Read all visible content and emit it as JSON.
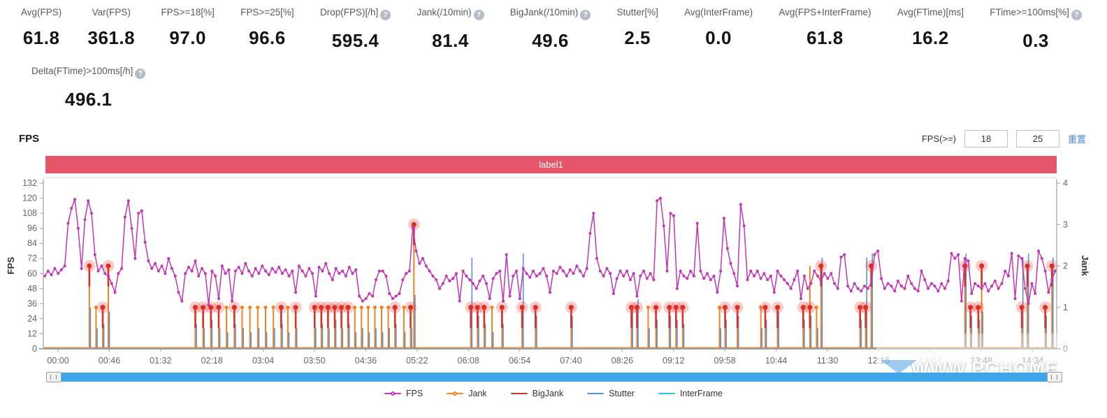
{
  "metrics": {
    "items": [
      {
        "label": "Avg(FPS)",
        "value": "61.8",
        "help": false
      },
      {
        "label": "Var(FPS)",
        "value": "361.8",
        "help": false
      },
      {
        "label": "FPS>=18[%]",
        "value": "97.0",
        "help": false
      },
      {
        "label": "FPS>=25[%]",
        "value": "96.6",
        "help": false
      },
      {
        "label": "Drop(FPS)[/h]",
        "value": "595.4",
        "help": true
      },
      {
        "label": "Jank(/10min)",
        "value": "81.4",
        "help": true
      },
      {
        "label": "BigJank(/10min)",
        "value": "49.6",
        "help": true
      },
      {
        "label": "Stutter[%]",
        "value": "2.5",
        "help": false
      },
      {
        "label": "Avg(InterFrame)",
        "value": "0.0",
        "help": false
      },
      {
        "label": "Avg(FPS+InterFrame)",
        "value": "61.8",
        "help": false
      },
      {
        "label": "Avg(FTime)[ms]",
        "value": "16.2",
        "help": false
      },
      {
        "label": "FTime>=100ms[%]",
        "value": "0.3",
        "help": true
      }
    ]
  },
  "metrics_row2": {
    "label": "Delta(FTime)>100ms[/h]",
    "value": "496.1",
    "help": true
  },
  "fps_section": {
    "title": "FPS",
    "filter_label": "FPS(>=)",
    "filter_min": "18",
    "filter_max": "25",
    "reset_label": "重置"
  },
  "watermark": {
    "text": "WWW.PCHOME"
  },
  "chart_data": {
    "type": "line",
    "label_banner": "label1",
    "y_left": {
      "label": "FPS",
      "min": 0,
      "max": 132,
      "ticks": [
        0,
        12,
        24,
        36,
        48,
        60,
        72,
        84,
        96,
        108,
        120,
        132
      ]
    },
    "y_right": {
      "label": "Jank",
      "min": 0,
      "max": 4,
      "ticks": [
        0,
        1,
        2,
        3,
        4
      ]
    },
    "x_axis": {
      "tick_interval_s": 46,
      "labels": [
        "00:00",
        "00:46",
        "01:32",
        "02:18",
        "03:04",
        "03:50",
        "04:36",
        "05:22",
        "06:08",
        "06:54",
        "07:40",
        "08:26",
        "09:12",
        "09:58",
        "10:44",
        "11:30",
        "12:16",
        "13:02",
        "13:48",
        "14:34"
      ],
      "faded_label_index": 17
    },
    "colors": {
      "fps": "#c136b4",
      "jank": "#f08423",
      "bigjank": "#d93025",
      "bigjank_halo": "rgba(240,70,60,0.28)",
      "stutter": "#5b8fd6",
      "interframe": "#29c4d8",
      "axis": "#a7afb8",
      "axis_bottom": "#9aa0a6",
      "tick_text": "#666666",
      "banner": "#e6566b",
      "scrollbar": "#3ea5e9"
    },
    "fps_series": {
      "t0": 0,
      "dt_s": 3,
      "values": [
        58,
        62,
        59,
        64,
        60,
        63,
        66,
        100,
        112,
        119,
        96,
        64,
        103,
        118,
        108,
        75,
        62,
        66,
        60,
        58,
        52,
        45,
        60,
        64,
        105,
        118,
        96,
        72,
        108,
        110,
        85,
        70,
        64,
        68,
        62,
        66,
        60,
        72,
        64,
        58,
        45,
        38,
        60,
        65,
        62,
        70,
        58,
        64,
        60,
        35,
        62,
        58,
        40,
        66,
        60,
        63,
        38,
        62,
        65,
        60,
        68,
        62,
        58,
        64,
        60,
        66,
        62,
        59,
        64,
        61,
        65,
        60,
        63,
        58,
        62,
        45,
        66,
        62,
        58,
        64,
        60,
        42,
        65,
        62,
        68,
        60,
        55,
        64,
        60,
        62,
        58,
        65,
        60,
        63,
        42,
        38,
        40,
        44,
        42,
        55,
        62,
        62,
        58,
        44,
        40,
        42,
        44,
        55,
        60,
        62,
        97,
        78,
        68,
        72,
        66,
        62,
        58,
        55,
        48,
        52,
        58,
        54,
        56,
        60,
        38,
        62,
        58,
        55,
        52,
        48,
        54,
        58,
        52,
        40,
        56,
        60,
        62,
        38,
        75,
        42,
        58,
        62,
        40,
        64,
        60,
        57,
        62,
        58,
        60,
        64,
        58,
        45,
        62,
        60,
        65,
        62,
        58,
        63,
        60,
        66,
        62,
        58,
        64,
        92,
        108,
        72,
        62,
        58,
        64,
        60,
        44,
        56,
        62,
        58,
        62,
        55,
        60,
        42,
        58,
        62,
        56,
        60,
        55,
        118,
        120,
        98,
        62,
        108,
        106,
        48,
        62,
        58,
        56,
        62,
        58,
        100,
        62,
        56,
        60,
        55,
        58,
        45,
        62,
        104,
        80,
        68,
        60,
        50,
        115,
        98,
        55,
        62,
        58,
        62,
        56,
        60,
        55,
        58,
        45,
        62,
        58,
        55,
        52,
        48,
        55,
        62,
        40,
        58,
        48,
        52,
        62,
        58,
        54,
        60,
        56,
        60,
        52,
        48,
        73,
        75,
        50,
        46,
        52,
        48,
        46,
        50,
        48,
        52,
        75,
        78,
        56,
        48,
        52,
        50,
        46,
        54,
        50,
        48,
        58,
        52,
        48,
        46,
        62,
        55,
        48,
        52,
        50,
        46,
        52,
        48,
        54,
        76,
        72,
        75,
        38,
        72,
        70,
        44,
        52,
        50,
        48,
        52,
        46,
        50,
        54,
        48,
        52,
        62,
        58,
        76,
        40,
        74,
        72,
        48,
        36,
        52,
        44,
        78,
        72,
        62,
        45,
        55,
        62
      ]
    },
    "events": [
      {
        "t": 40,
        "jank": 2,
        "big": 2,
        "stutter": 1.0
      },
      {
        "t": 46,
        "jank": 1,
        "big": 0,
        "stutter": 0.5
      },
      {
        "t": 52,
        "jank": 1,
        "big": 1,
        "stutter": 0.6
      },
      {
        "t": 57,
        "jank": 2,
        "big": 2,
        "stutter": 0.9
      },
      {
        "t": 135,
        "jank": 1,
        "big": 1,
        "stutter": 0.6
      },
      {
        "t": 142,
        "jank": 1,
        "big": 1,
        "stutter": 0.5
      },
      {
        "t": 149,
        "jank": 1,
        "big": 1,
        "stutter": 0.7
      },
      {
        "t": 156,
        "jank": 1,
        "big": 1,
        "stutter": 0.5
      },
      {
        "t": 163,
        "jank": 1,
        "big": 0,
        "stutter": 0.4
      },
      {
        "t": 170,
        "jank": 1,
        "big": 1,
        "stutter": 0.6
      },
      {
        "t": 177,
        "jank": 1,
        "big": 0,
        "stutter": 0.5
      },
      {
        "t": 184,
        "jank": 1,
        "big": 0,
        "stutter": 0.4
      },
      {
        "t": 191,
        "jank": 1,
        "big": 0,
        "stutter": 0.5
      },
      {
        "t": 198,
        "jank": 1,
        "big": 0,
        "stutter": 0.4
      },
      {
        "t": 205,
        "jank": 1,
        "big": 0,
        "stutter": 0.5
      },
      {
        "t": 212,
        "jank": 1,
        "big": 1,
        "stutter": 0.6
      },
      {
        "t": 218,
        "jank": 1,
        "big": 0,
        "stutter": 0.4
      },
      {
        "t": 225,
        "jank": 1,
        "big": 1,
        "stutter": 0.5
      },
      {
        "t": 242,
        "jank": 1,
        "big": 1,
        "stutter": 0.5
      },
      {
        "t": 248,
        "jank": 1,
        "big": 1,
        "stutter": 0.6
      },
      {
        "t": 254,
        "jank": 1,
        "big": 1,
        "stutter": 0.5
      },
      {
        "t": 260,
        "jank": 1,
        "big": 1,
        "stutter": 0.7
      },
      {
        "t": 266,
        "jank": 1,
        "big": 1,
        "stutter": 0.5
      },
      {
        "t": 272,
        "jank": 1,
        "big": 1,
        "stutter": 0.6
      },
      {
        "t": 278,
        "jank": 1,
        "big": 0,
        "stutter": 0.4
      },
      {
        "t": 284,
        "jank": 1,
        "big": 0,
        "stutter": 0.5
      },
      {
        "t": 290,
        "jank": 1,
        "big": 0,
        "stutter": 0.4
      },
      {
        "t": 296,
        "jank": 1,
        "big": 0,
        "stutter": 0.5
      },
      {
        "t": 302,
        "jank": 1,
        "big": 0,
        "stutter": 0.4
      },
      {
        "t": 308,
        "jank": 1,
        "big": 0,
        "stutter": 0.5
      },
      {
        "t": 314,
        "jank": 1,
        "big": 1,
        "stutter": 0.6
      },
      {
        "t": 322,
        "jank": 1,
        "big": 0,
        "stutter": 0.4
      },
      {
        "t": 328,
        "jank": 1,
        "big": 1,
        "stutter": 0.5
      },
      {
        "t": 331,
        "jank": 3,
        "big": 3,
        "stutter": 1.3
      },
      {
        "t": 382,
        "jank": 1,
        "big": 1,
        "stutter": 2.2
      },
      {
        "t": 388,
        "jank": 1,
        "big": 1,
        "stutter": 0.8
      },
      {
        "t": 394,
        "jank": 1,
        "big": 1,
        "stutter": 0.6
      },
      {
        "t": 401,
        "jank": 1,
        "big": 0,
        "stutter": 0.4
      },
      {
        "t": 410,
        "jank": 1,
        "big": 1,
        "stutter": 0.6
      },
      {
        "t": 428,
        "jank": 1,
        "big": 1,
        "stutter": 2.3
      },
      {
        "t": 440,
        "jank": 1,
        "big": 1,
        "stutter": 0.8
      },
      {
        "t": 472,
        "jank": 1,
        "big": 1,
        "stutter": 0.8
      },
      {
        "t": 526,
        "jank": 1,
        "big": 1,
        "stutter": 1.0
      },
      {
        "t": 531,
        "jank": 1,
        "big": 1,
        "stutter": 1.2
      },
      {
        "t": 541,
        "jank": 1,
        "big": 0,
        "stutter": 0.5
      },
      {
        "t": 548,
        "jank": 1,
        "big": 1,
        "stutter": 0.7
      },
      {
        "t": 560,
        "jank": 1,
        "big": 1,
        "stutter": 0.8
      },
      {
        "t": 566,
        "jank": 1,
        "big": 1,
        "stutter": 0.7
      },
      {
        "t": 572,
        "jank": 1,
        "big": 1,
        "stutter": 0.6
      },
      {
        "t": 605,
        "jank": 1,
        "big": 0,
        "stutter": 0.5
      },
      {
        "t": 610,
        "jank": 1,
        "big": 1,
        "stutter": 0.7
      },
      {
        "t": 621,
        "jank": 1,
        "big": 1,
        "stutter": 0.8
      },
      {
        "t": 642,
        "jank": 1,
        "big": 0,
        "stutter": 0.5
      },
      {
        "t": 646,
        "jank": 1,
        "big": 1,
        "stutter": 0.7
      },
      {
        "t": 657,
        "jank": 1,
        "big": 1,
        "stutter": 0.9
      },
      {
        "t": 680,
        "jank": 1,
        "big": 1,
        "stutter": 0.7
      },
      {
        "t": 686,
        "jank": 2,
        "big": 1,
        "stutter": 0.8
      },
      {
        "t": 692,
        "jank": 1,
        "big": 0,
        "stutter": 0.5
      },
      {
        "t": 696,
        "jank": 1,
        "big": 2,
        "stutter": 2.2
      },
      {
        "t": 731,
        "jank": 1,
        "big": 1,
        "stutter": 0.7
      },
      {
        "t": 736,
        "jank": 1,
        "big": 1,
        "stutter": 2.2
      },
      {
        "t": 741,
        "jank": 1,
        "big": 2,
        "stutter": 2.3
      },
      {
        "t": 825,
        "jank": 1,
        "big": 2,
        "stutter": 2.3
      },
      {
        "t": 830,
        "jank": 1,
        "big": 1,
        "stutter": 0.8
      },
      {
        "t": 837,
        "jank": 1,
        "big": 1,
        "stutter": 0.7
      },
      {
        "t": 840,
        "jank": 1,
        "big": 2,
        "stutter": 0.9
      },
      {
        "t": 876,
        "jank": 1,
        "big": 1,
        "stutter": 2.2
      },
      {
        "t": 881,
        "jank": 1,
        "big": 2,
        "stutter": 2.3
      },
      {
        "t": 897,
        "jank": 1,
        "big": 1,
        "stutter": 0.8
      },
      {
        "t": 903,
        "jank": 1,
        "big": 2,
        "stutter": 2.2
      }
    ],
    "legend": [
      {
        "label": "FPS",
        "color": "#c136b4",
        "dot": true
      },
      {
        "label": "Jank",
        "color": "#f08423",
        "dot": true
      },
      {
        "label": "BigJank",
        "color": "#c0392b",
        "dot": false
      },
      {
        "label": "Stutter",
        "color": "#5b8fd6",
        "dot": false
      },
      {
        "label": "InterFrame",
        "color": "#29c4d8",
        "dot": false
      }
    ]
  }
}
